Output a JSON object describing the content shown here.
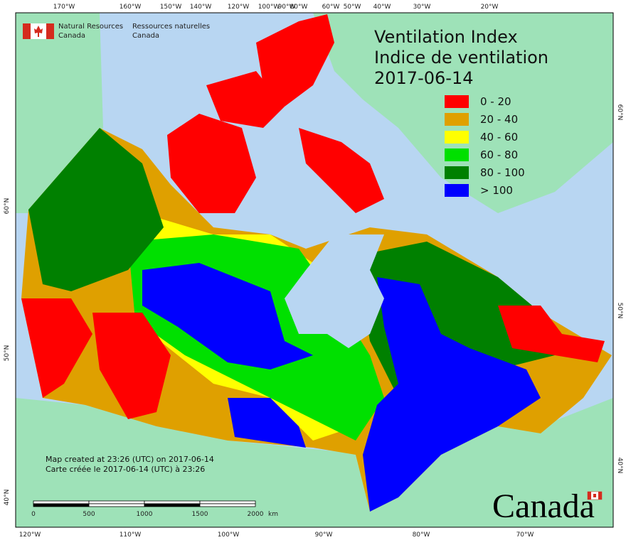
{
  "logo": {
    "en_1": "Natural Resources",
    "en_2": "Canada",
    "fr_1": "Ressources naturelles",
    "fr_2": "Canada"
  },
  "title": {
    "line1": "Ventilation Index",
    "line2": "Indice de ventilation",
    "date": "2017-06-14"
  },
  "legend": [
    {
      "label": "0 - 20",
      "color": "#ff0000"
    },
    {
      "label": "20 - 40",
      "color": "#dfa000"
    },
    {
      "label": "40 - 60",
      "color": "#ffff00"
    },
    {
      "label": "60 - 80",
      "color": "#00e000"
    },
    {
      "label": "80 - 100",
      "color": "#008000"
    },
    {
      "label": "> 100",
      "color": "#0000ff"
    }
  ],
  "top_labels": [
    "170°W",
    "160°W",
    "150°W",
    "140°W",
    "120°W",
    "100°W",
    "90°W",
    "80°W",
    "60°W",
    "50°W",
    "40°W",
    "30°W",
    "20°W"
  ],
  "bottom_labels": [
    "120°W",
    "110°W",
    "100°W",
    "90°W",
    "80°W",
    "70°W"
  ],
  "left_labels": [
    "60°N",
    "50°N",
    "40°N"
  ],
  "right_labels": [
    "60°N",
    "50°N",
    "40°N"
  ],
  "notes": {
    "line1": "Map created at 23:26 (UTC) on 2017-06-14",
    "line2": "Carte créée le 2017-06-14 (UTC) à 23:26"
  },
  "scale": {
    "labels": [
      "0",
      "500",
      "1000",
      "1500",
      "2000"
    ],
    "unit": "km"
  },
  "wordmark": "Canada"
}
